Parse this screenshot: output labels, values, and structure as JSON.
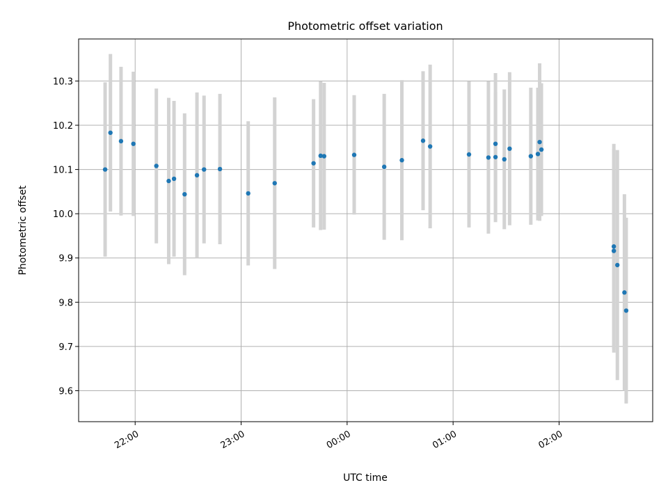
{
  "chart_data": {
    "type": "scatter",
    "title": "Photometric offset variation",
    "xlabel": "UTC time",
    "ylabel": "Photometric offset",
    "x_axis": "time",
    "x_ticks": [
      "22:00",
      "23:00",
      "00:00",
      "01:00",
      "02:00"
    ],
    "x_range": [
      "21:28",
      "02:53"
    ],
    "y_ticks": [
      "9.6",
      "9.7",
      "9.8",
      "9.9",
      "10.0",
      "10.1",
      "10.2",
      "10.3"
    ],
    "ylim": [
      9.53,
      10.395
    ],
    "grid": true,
    "legend": "none",
    "marker_color": "#1f77b4",
    "errorbar_color": "#d3d3d3",
    "points": [
      {
        "t": "21:43",
        "y": 10.1,
        "err": 0.197
      },
      {
        "t": "21:46",
        "y": 10.183,
        "err": 0.178
      },
      {
        "t": "21:52",
        "y": 10.164,
        "err": 0.168
      },
      {
        "t": "21:59",
        "y": 10.158,
        "err": 0.163
      },
      {
        "t": "22:12",
        "y": 10.108,
        "err": 0.175
      },
      {
        "t": "22:19",
        "y": 10.074,
        "err": 0.188
      },
      {
        "t": "22:22",
        "y": 10.079,
        "err": 0.176
      },
      {
        "t": "22:28",
        "y": 10.044,
        "err": 0.183
      },
      {
        "t": "22:35",
        "y": 10.087,
        "err": 0.187
      },
      {
        "t": "22:39",
        "y": 10.1,
        "err": 0.167
      },
      {
        "t": "22:48",
        "y": 10.101,
        "err": 0.17
      },
      {
        "t": "23:04",
        "y": 10.046,
        "err": 0.163
      },
      {
        "t": "23:19",
        "y": 10.069,
        "err": 0.194
      },
      {
        "t": "23:41",
        "y": 10.114,
        "err": 0.145
      },
      {
        "t": "23:45",
        "y": 10.131,
        "err": 0.168
      },
      {
        "t": "23:47",
        "y": 10.13,
        "err": 0.166
      },
      {
        "t": "00:04",
        "y": 10.133,
        "err": 0.135
      },
      {
        "t": "00:21",
        "y": 10.106,
        "err": 0.165
      },
      {
        "t": "00:31",
        "y": 10.121,
        "err": 0.181
      },
      {
        "t": "00:43",
        "y": 10.165,
        "err": 0.157
      },
      {
        "t": "00:47",
        "y": 10.152,
        "err": 0.185
      },
      {
        "t": "01:09",
        "y": 10.134,
        "err": 0.165
      },
      {
        "t": "01:20",
        "y": 10.127,
        "err": 0.172
      },
      {
        "t": "01:24",
        "y": 10.158,
        "err": 0.16
      },
      {
        "t": "01:24",
        "y": 10.128,
        "err": 0.147
      },
      {
        "t": "01:29",
        "y": 10.123,
        "err": 0.158
      },
      {
        "t": "01:32",
        "y": 10.147,
        "err": 0.173
      },
      {
        "t": "01:44",
        "y": 10.13,
        "err": 0.155
      },
      {
        "t": "01:48",
        "y": 10.135,
        "err": 0.15
      },
      {
        "t": "01:49",
        "y": 10.162,
        "err": 0.178
      },
      {
        "t": "01:50",
        "y": 10.145,
        "err": 0.15
      },
      {
        "t": "02:31",
        "y": 9.916,
        "err": 0.23
      },
      {
        "t": "02:31",
        "y": 9.926,
        "err": 0.232
      },
      {
        "t": "02:33",
        "y": 9.884,
        "err": 0.26
      },
      {
        "t": "02:37",
        "y": 9.822,
        "err": 0.222
      },
      {
        "t": "02:38",
        "y": 9.781,
        "err": 0.21
      }
    ]
  }
}
